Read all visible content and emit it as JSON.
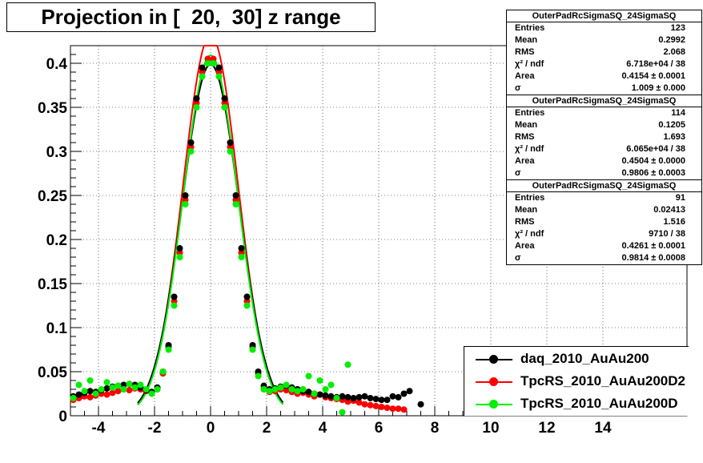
{
  "title": "Projection in [  20,  30] z range",
  "stats": [
    {
      "name": "OuterPadRcSigmaSQ_24SigmaSQ",
      "rows": [
        {
          "label": "Entries",
          "value": "123"
        },
        {
          "label": "Mean",
          "value": "0.2992"
        },
        {
          "label": "RMS",
          "value": "2.068"
        },
        {
          "label": "χ² / ndf",
          "value": "6.718e+04 / 38"
        },
        {
          "label": "Area",
          "value": "0.4154 ± 0.0001"
        },
        {
          "label": "σ",
          "value": "1.009 ± 0.000"
        }
      ]
    },
    {
      "name": "OuterPadRcSigmaSQ_24SigmaSQ",
      "rows": [
        {
          "label": "Entries",
          "value": "114"
        },
        {
          "label": "Mean",
          "value": "0.1205"
        },
        {
          "label": "RMS",
          "value": "1.693"
        },
        {
          "label": "χ² / ndf",
          "value": "6.065e+04 / 38"
        },
        {
          "label": "Area",
          "value": "0.4504 ± 0.0000"
        },
        {
          "label": "σ",
          "value": "0.9806 ± 0.0003"
        }
      ]
    },
    {
      "name": "OuterPadRcSigmaSQ_24SigmaSQ",
      "rows": [
        {
          "label": "Entries",
          "value": "91"
        },
        {
          "label": "Mean",
          "value": "0.02413"
        },
        {
          "label": "RMS",
          "value": "1.516"
        },
        {
          "label": "χ² / ndf",
          "value": "9710 / 38"
        },
        {
          "label": "Area",
          "value": "0.4261 ± 0.0001"
        },
        {
          "label": "σ",
          "value": "0.9814 ± 0.0008"
        }
      ]
    }
  ],
  "legend": [
    {
      "label": "daq_2010_AuAu200",
      "color": "#000000"
    },
    {
      "label": "TpcRS_2010_AuAu200D2",
      "color": "#ff0000"
    },
    {
      "label": "TpcRS_2010_AuAu200D",
      "color": "#00ee00"
    }
  ],
  "chart_data": {
    "type": "scatter",
    "title": "Projection in [  20,  30] z range",
    "xlabel": "",
    "ylabel": "",
    "xlim": [
      -5,
      17
    ],
    "ylim": [
      0,
      0.42
    ],
    "xticks": [
      -4,
      -2,
      0,
      2,
      4,
      6,
      8,
      10,
      12,
      14
    ],
    "yticks": [
      0,
      0.05,
      0.1,
      0.15,
      0.2,
      0.25,
      0.3,
      0.35,
      0.4
    ],
    "xtick_labels": [
      "-4",
      "-2",
      "0",
      "2",
      "4",
      "6",
      "8",
      "10",
      "12",
      "14"
    ],
    "ytick_labels": [
      "0",
      "0.05",
      "0.1",
      "0.15",
      "0.2",
      "0.25",
      "0.3",
      "0.35",
      "0.4"
    ],
    "grid": true,
    "legend_position": "bottom-right",
    "series": [
      {
        "name": "daq_2010_AuAu200",
        "color": "#000000",
        "fit": {
          "area": 0.4154,
          "sigma": 1.009
        },
        "x": [
          -4.9,
          -4.7,
          -4.5,
          -4.3,
          -4.1,
          -3.9,
          -3.7,
          -3.5,
          -3.3,
          -3.1,
          -2.9,
          -2.7,
          -2.5,
          -2.3,
          -2.1,
          -1.9,
          -1.7,
          -1.5,
          -1.3,
          -1.1,
          -0.9,
          -0.7,
          -0.5,
          -0.3,
          -0.1,
          0.1,
          0.3,
          0.5,
          0.7,
          0.9,
          1.1,
          1.3,
          1.5,
          1.7,
          1.9,
          2.1,
          2.3,
          2.5,
          2.7,
          2.9,
          3.1,
          3.3,
          3.5,
          3.7,
          3.9,
          4.1,
          4.3,
          4.5,
          4.7,
          4.9,
          5.1,
          5.3,
          5.5,
          5.7,
          5.9,
          6.1,
          6.3,
          6.5,
          6.7,
          6.9,
          7.1,
          7.5
        ],
        "y": [
          0.022,
          0.024,
          0.026,
          0.028,
          0.027,
          0.029,
          0.031,
          0.033,
          0.034,
          0.035,
          0.036,
          0.035,
          0.032,
          0.029,
          0.027,
          0.032,
          0.05,
          0.08,
          0.135,
          0.19,
          0.25,
          0.31,
          0.36,
          0.395,
          0.4,
          0.4,
          0.395,
          0.36,
          0.31,
          0.25,
          0.19,
          0.135,
          0.08,
          0.05,
          0.034,
          0.03,
          0.031,
          0.033,
          0.034,
          0.032,
          0.03,
          0.028,
          0.027,
          0.025,
          0.024,
          0.023,
          0.022,
          0.021,
          0.022,
          0.021,
          0.02,
          0.021,
          0.022,
          0.02,
          0.019,
          0.018,
          0.018,
          0.022,
          0.021,
          0.025,
          0.028,
          0.013
        ]
      },
      {
        "name": "TpcRS_2010_AuAu200D2",
        "color": "#ff0000",
        "fit": {
          "area": 0.4504,
          "sigma": 0.9806
        },
        "x": [
          -4.9,
          -4.7,
          -4.5,
          -4.3,
          -4.1,
          -3.9,
          -3.7,
          -3.5,
          -3.3,
          -3.1,
          -2.9,
          -2.7,
          -2.5,
          -2.3,
          -2.1,
          -1.9,
          -1.7,
          -1.5,
          -1.3,
          -1.1,
          -0.9,
          -0.7,
          -0.5,
          -0.3,
          -0.1,
          0.1,
          0.3,
          0.5,
          0.7,
          0.9,
          1.1,
          1.3,
          1.5,
          1.7,
          1.9,
          2.1,
          2.3,
          2.5,
          2.7,
          2.9,
          3.1,
          3.3,
          3.5,
          3.7,
          3.9,
          4.1,
          4.3,
          4.5,
          4.7,
          4.9,
          5.1,
          5.3,
          5.5,
          5.7,
          5.9,
          6.1,
          6.3,
          6.5,
          6.7,
          6.9
        ],
        "y": [
          0.018,
          0.02,
          0.022,
          0.021,
          0.023,
          0.025,
          0.024,
          0.026,
          0.028,
          0.03,
          0.029,
          0.031,
          0.03,
          0.028,
          0.026,
          0.03,
          0.048,
          0.078,
          0.13,
          0.185,
          0.245,
          0.305,
          0.355,
          0.39,
          0.405,
          0.405,
          0.39,
          0.355,
          0.305,
          0.245,
          0.185,
          0.13,
          0.078,
          0.048,
          0.03,
          0.027,
          0.028,
          0.03,
          0.029,
          0.027,
          0.025,
          0.026,
          0.024,
          0.022,
          0.024,
          0.021,
          0.02,
          0.019,
          0.018,
          0.016,
          0.017,
          0.015,
          0.013,
          0.012,
          0.011,
          0.01,
          0.009,
          0.008,
          0.008,
          0.007
        ]
      },
      {
        "name": "TpcRS_2010_AuAu200D",
        "color": "#00ee00",
        "fit": {
          "area": 0.4261,
          "sigma": 0.9814
        },
        "x": [
          -4.9,
          -4.7,
          -4.5,
          -4.3,
          -4.1,
          -3.9,
          -3.7,
          -3.5,
          -3.3,
          -3.1,
          -2.9,
          -2.7,
          -2.5,
          -2.3,
          -2.1,
          -1.9,
          -1.7,
          -1.5,
          -1.3,
          -1.1,
          -0.9,
          -0.7,
          -0.5,
          -0.3,
          -0.1,
          0.1,
          0.3,
          0.5,
          0.7,
          0.9,
          1.1,
          1.3,
          1.5,
          1.7,
          1.9,
          2.1,
          2.3,
          2.5,
          2.7,
          2.9,
          3.1,
          3.3,
          3.5,
          3.7,
          3.9,
          4.1,
          4.3,
          4.5,
          4.7,
          4.9
        ],
        "y": [
          0.02,
          0.035,
          0.028,
          0.04,
          0.025,
          0.03,
          0.038,
          0.032,
          0.034,
          0.03,
          0.036,
          0.032,
          0.035,
          0.03,
          0.025,
          0.03,
          0.05,
          0.075,
          0.125,
          0.18,
          0.24,
          0.3,
          0.35,
          0.385,
          0.4,
          0.4,
          0.385,
          0.35,
          0.3,
          0.24,
          0.18,
          0.125,
          0.075,
          0.045,
          0.03,
          0.028,
          0.03,
          0.032,
          0.035,
          0.03,
          0.028,
          0.03,
          0.045,
          0.025,
          0.04,
          0.03,
          0.035,
          0.02,
          0.004,
          0.058
        ]
      }
    ]
  }
}
